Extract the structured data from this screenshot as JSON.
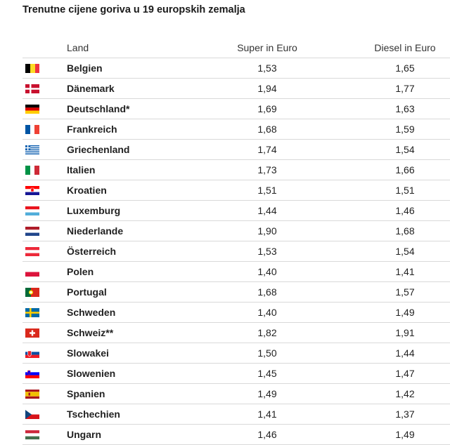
{
  "title": "Trenutne cijene goriva u 19 europskih zemalja",
  "chart_data": {
    "type": "table",
    "columns": [
      "Land",
      "Super in Euro",
      "Diesel in Euro"
    ],
    "rows": [
      {
        "land": "Belgien",
        "flag": "belgium-flag-icon",
        "super": "1,53",
        "diesel": "1,65"
      },
      {
        "land": "Dänemark",
        "flag": "denmark-flag-icon",
        "super": "1,94",
        "diesel": "1,77"
      },
      {
        "land": "Deutschland*",
        "flag": "germany-flag-icon",
        "super": "1,69",
        "diesel": "1,63"
      },
      {
        "land": "Frankreich",
        "flag": "france-flag-icon",
        "super": "1,68",
        "diesel": "1,59"
      },
      {
        "land": "Griechenland",
        "flag": "greece-flag-icon",
        "super": "1,74",
        "diesel": "1,54"
      },
      {
        "land": "Italien",
        "flag": "italy-flag-icon",
        "super": "1,73",
        "diesel": "1,66"
      },
      {
        "land": "Kroatien",
        "flag": "croatia-flag-icon",
        "super": "1,51",
        "diesel": "1,51"
      },
      {
        "land": "Luxemburg",
        "flag": "luxembourg-flag-icon",
        "super": "1,44",
        "diesel": "1,46"
      },
      {
        "land": "Niederlande",
        "flag": "netherlands-flag-icon",
        "super": "1,90",
        "diesel": "1,68"
      },
      {
        "land": "Österreich",
        "flag": "austria-flag-icon",
        "super": "1,53",
        "diesel": "1,54"
      },
      {
        "land": "Polen",
        "flag": "poland-flag-icon",
        "super": "1,40",
        "diesel": "1,41"
      },
      {
        "land": "Portugal",
        "flag": "portugal-flag-icon",
        "super": "1,68",
        "diesel": "1,57"
      },
      {
        "land": "Schweden",
        "flag": "sweden-flag-icon",
        "super": "1,40",
        "diesel": "1,49"
      },
      {
        "land": "Schweiz**",
        "flag": "switzerland-flag-icon",
        "super": "1,82",
        "diesel": "1,91"
      },
      {
        "land": "Slowakei",
        "flag": "slovakia-flag-icon",
        "super": "1,50",
        "diesel": "1,44"
      },
      {
        "land": "Slowenien",
        "flag": "slovenia-flag-icon",
        "super": "1,45",
        "diesel": "1,47"
      },
      {
        "land": "Spanien",
        "flag": "spain-flag-icon",
        "super": "1,49",
        "diesel": "1,42"
      },
      {
        "land": "Tschechien",
        "flag": "czech-flag-icon",
        "super": "1,41",
        "diesel": "1,37"
      },
      {
        "land": "Ungarn",
        "flag": "hungary-flag-icon",
        "super": "1,46",
        "diesel": "1,49"
      }
    ]
  }
}
